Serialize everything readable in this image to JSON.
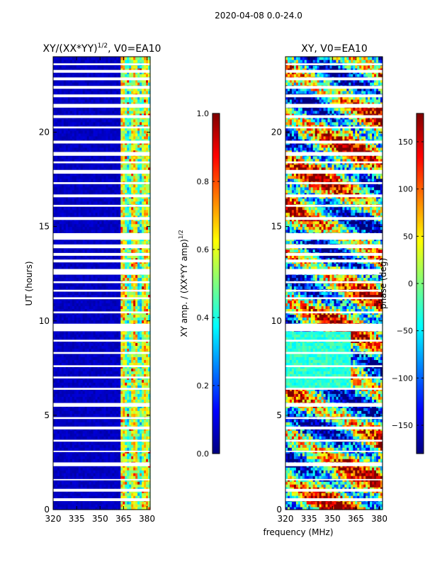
{
  "figure_title": "2020-04-08 0.0-24.0",
  "shared_xlabel": "frequency (MHz)",
  "colors": {
    "jet": [
      "#00007f",
      "#0000ff",
      "#007fff",
      "#00ffff",
      "#7fff7f",
      "#ffff00",
      "#ff7f00",
      "#ff0000",
      "#7f0000"
    ],
    "axis": "#000000",
    "background": "#ffffff"
  },
  "chart_data": [
    {
      "type": "heatmap",
      "title_main": "XY/(XX*YY)",
      "title_exp": "1/2",
      "title_suffix": ", V0=EA10",
      "xlabel": "",
      "ylabel": "UT (hours)",
      "xlim": [
        320,
        382
      ],
      "ylim": [
        0,
        24
      ],
      "xticks": [
        320,
        335,
        350,
        365,
        380
      ],
      "xtick_labels": [
        "320",
        "335",
        "350",
        "365",
        "380"
      ],
      "yticks": [
        0,
        5,
        10,
        15,
        20
      ],
      "ytick_labels": [
        "0",
        "5",
        "10",
        "15",
        "20"
      ],
      "pattern": "amplitude",
      "colorbar": {
        "label_main": "XY amp. / (XX*YY amp)",
        "label_exp": "1/2",
        "min": 0.0,
        "max": 1.0,
        "ticks": [
          0.0,
          0.2,
          0.4,
          0.6,
          0.8,
          1.0
        ],
        "tick_labels": [
          "0.0",
          "0.2",
          "0.4",
          "0.6",
          "0.8",
          "1.0"
        ]
      }
    },
    {
      "type": "heatmap",
      "title_main": "XY, V0=EA10",
      "xlabel": "frequency (MHz)",
      "ylabel": "",
      "xlim": [
        320,
        382
      ],
      "ylim": [
        0,
        24
      ],
      "xticks": [
        320,
        335,
        350,
        365,
        380
      ],
      "xtick_labels": [
        "320",
        "335",
        "350",
        "365",
        "380"
      ],
      "yticks": [
        0,
        5,
        10,
        15,
        20
      ],
      "ytick_labels": [
        "0",
        "5",
        "10",
        "15",
        "20"
      ],
      "pattern": "phase",
      "colorbar": {
        "label_main": "phase (deg)",
        "min": -180,
        "max": 180,
        "ticks": [
          -150,
          -100,
          -50,
          0,
          50,
          100,
          150
        ],
        "tick_labels": [
          "−150",
          "−100",
          "−50",
          "0",
          "50",
          "100",
          "150"
        ]
      }
    }
  ],
  "flagged_hours": [
    [
      0.45,
      0.6
    ],
    [
      0.95,
      1.1
    ],
    [
      1.55,
      1.62
    ],
    [
      2.3,
      2.5
    ],
    [
      3.05,
      3.12
    ],
    [
      3.6,
      3.7
    ],
    [
      4.25,
      4.4
    ],
    [
      4.8,
      4.9
    ],
    [
      5.45,
      5.65
    ],
    [
      6.35,
      6.45
    ],
    [
      6.95,
      7.05
    ],
    [
      7.55,
      7.65
    ],
    [
      8.25,
      8.35
    ],
    [
      8.9,
      9.0
    ],
    [
      9.45,
      9.85
    ],
    [
      10.4,
      10.5
    ],
    [
      11.15,
      11.25
    ],
    [
      11.55,
      11.65
    ],
    [
      12.0,
      12.1
    ],
    [
      12.45,
      12.75
    ],
    [
      13.1,
      13.25
    ],
    [
      13.45,
      13.6
    ],
    [
      13.85,
      14.05
    ],
    [
      14.3,
      14.65
    ],
    [
      15.35,
      15.5
    ],
    [
      16.05,
      16.15
    ],
    [
      16.55,
      16.7
    ],
    [
      17.25,
      17.35
    ],
    [
      17.8,
      18.0
    ],
    [
      18.35,
      18.45
    ],
    [
      18.75,
      18.95
    ],
    [
      19.4,
      19.55
    ],
    [
      20.2,
      20.3
    ],
    [
      20.75,
      20.9
    ],
    [
      21.3,
      21.5
    ],
    [
      21.85,
      22.0
    ],
    [
      22.3,
      22.45
    ],
    [
      22.75,
      22.9
    ],
    [
      23.15,
      23.3
    ],
    [
      23.55,
      23.65
    ]
  ]
}
